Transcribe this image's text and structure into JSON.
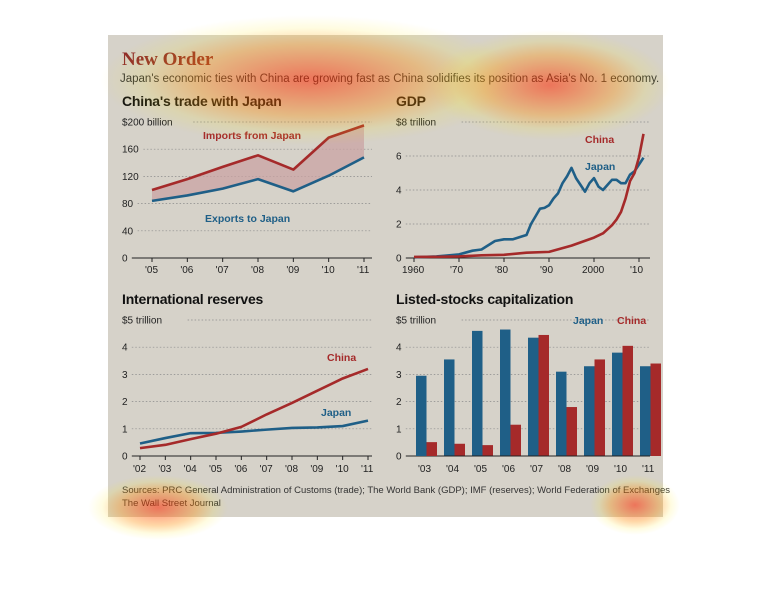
{
  "title": "New Order",
  "subtitle": "Japan's economic ties with China are growing fast as China solidifies its position as Asia's No. 1 economy.",
  "sources": "Sources: PRC General Administration of Customs (trade); The World Bank (GDP); IMF (reserves); World Federation of Exchanges",
  "credit": "The Wall Street Journal",
  "colors": {
    "china": "#a52a2a",
    "japan": "#1f5f87",
    "background": "#d6d2c9",
    "title": "#8f2a2a"
  },
  "chart_data": [
    {
      "type": "area",
      "title": "China's trade with Japan",
      "unit_label": "$200 billion",
      "x": [
        "'05",
        "'06",
        "'07",
        "'08",
        "'09",
        "'10",
        "'11"
      ],
      "ylim": [
        0,
        200
      ],
      "yticks": [
        0,
        40,
        80,
        120,
        160,
        200
      ],
      "series": [
        {
          "name": "Imports from Japan",
          "values": [
            100,
            116,
            134,
            151,
            130,
            177,
            195
          ]
        },
        {
          "name": "Exports to Japan",
          "values": [
            84,
            92,
            102,
            116,
            98,
            121,
            148
          ]
        }
      ]
    },
    {
      "type": "line",
      "title": "GDP",
      "unit_label": "$8 trillion",
      "xticks": [
        "1960",
        "'70",
        "'80",
        "'90",
        "2000",
        "'10"
      ],
      "xlim": [
        1960,
        2012
      ],
      "ylim": [
        0,
        8
      ],
      "yticks": [
        0,
        2,
        4,
        6,
        8
      ],
      "series": [
        {
          "name": "China",
          "x": [
            1960,
            1965,
            1970,
            1975,
            1980,
            1985,
            1990,
            1995,
            2000,
            2002,
            2004,
            2005,
            2006,
            2007,
            2008,
            2009,
            2010,
            2011
          ],
          "values": [
            0.06,
            0.07,
            0.09,
            0.16,
            0.19,
            0.31,
            0.36,
            0.73,
            1.2,
            1.45,
            1.93,
            2.26,
            2.71,
            3.49,
            4.52,
            4.99,
            5.93,
            7.3
          ]
        },
        {
          "name": "Japan",
          "x": [
            1960,
            1965,
            1970,
            1973,
            1975,
            1978,
            1980,
            1982,
            1984,
            1985,
            1986,
            1987,
            1988,
            1989,
            1990,
            1991,
            1992,
            1993,
            1994,
            1995,
            1996,
            1997,
            1998,
            1999,
            2000,
            2001,
            2002,
            2003,
            2004,
            2005,
            2006,
            2007,
            2008,
            2009,
            2010,
            2011
          ],
          "values": [
            0.04,
            0.09,
            0.21,
            0.43,
            0.5,
            1.0,
            1.1,
            1.1,
            1.27,
            1.35,
            2.0,
            2.45,
            2.9,
            2.95,
            3.1,
            3.5,
            3.8,
            4.4,
            4.8,
            5.3,
            4.7,
            4.3,
            3.9,
            4.4,
            4.7,
            4.2,
            4.0,
            4.3,
            4.6,
            4.6,
            4.4,
            4.4,
            4.9,
            5.1,
            5.5,
            5.9
          ]
        }
      ]
    },
    {
      "type": "line",
      "title": "International reserves",
      "unit_label": "$5 trillion",
      "x": [
        "'02",
        "'03",
        "'04",
        "'05",
        "'06",
        "'07",
        "'08",
        "'09",
        "'10",
        "'11"
      ],
      "ylim": [
        0,
        5
      ],
      "yticks": [
        0,
        1,
        2,
        3,
        4,
        5
      ],
      "series": [
        {
          "name": "China",
          "values": [
            0.29,
            0.41,
            0.62,
            0.82,
            1.07,
            1.53,
            1.95,
            2.4,
            2.85,
            3.2
          ]
        },
        {
          "name": "Japan",
          "values": [
            0.46,
            0.66,
            0.84,
            0.85,
            0.9,
            0.97,
            1.03,
            1.05,
            1.1,
            1.3
          ]
        }
      ]
    },
    {
      "type": "bar",
      "title": "Listed-stocks capitalization",
      "unit_label": "$5 trillion",
      "categories": [
        "'03",
        "'04",
        "'05",
        "'06",
        "'07",
        "'08",
        "'09",
        "'10",
        "'11"
      ],
      "ylim": [
        0,
        5
      ],
      "yticks": [
        0,
        1,
        2,
        3,
        4,
        5
      ],
      "legend": "top-right",
      "series": [
        {
          "name": "Japan",
          "values": [
            2.95,
            3.55,
            4.6,
            4.65,
            4.35,
            3.1,
            3.3,
            3.8,
            3.3
          ]
        },
        {
          "name": "China",
          "values": [
            0.51,
            0.45,
            0.4,
            1.15,
            4.45,
            1.8,
            3.55,
            4.05,
            3.4
          ]
        }
      ]
    }
  ]
}
